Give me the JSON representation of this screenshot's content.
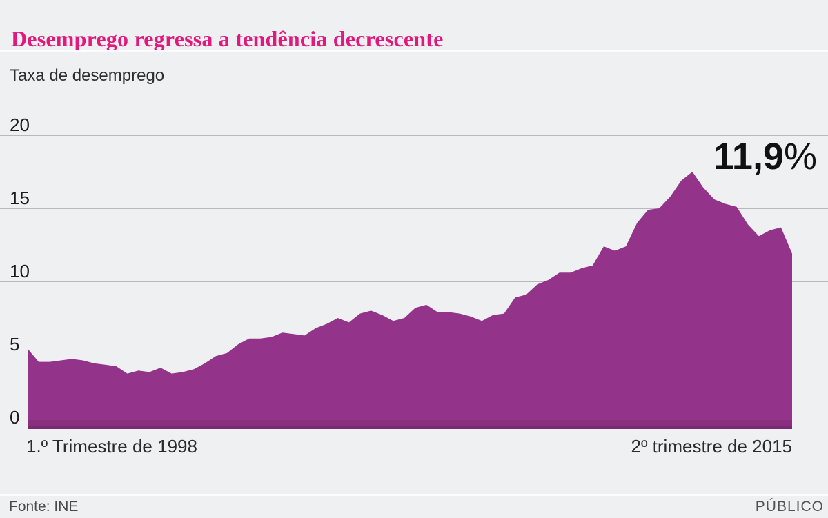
{
  "header": {
    "title": "Desemprego regressa a tendência decrescente",
    "subtitle": "Taxa de desemprego"
  },
  "annotation": {
    "value": "11,9",
    "unit": "%"
  },
  "x_axis": {
    "start_label": "1.º Trimestre de 1998",
    "end_label": "2º trimestre de 2015"
  },
  "footer": {
    "source": "Fonte: INE",
    "brand": "PÚBLICO"
  },
  "colors": {
    "background": "#eff0f1",
    "title_accent": "#e2197d",
    "area_fill": "#93338a",
    "area_base_shade": "#7c2f76",
    "gridline": "#b9b9bd",
    "annotation_text": "#111111"
  },
  "chart_data": {
    "type": "area",
    "title": "Desemprego regressa a tendência decrescente",
    "ylabel": "Taxa de desemprego",
    "unit": "percent",
    "frequency": "quarterly",
    "x_start": "1.º Trimestre de 1998",
    "x_end": "2º trimestre de 2015",
    "ylim": [
      0,
      20
    ],
    "y_ticks": [
      0,
      5,
      10,
      15,
      20
    ],
    "grid": "horizontal",
    "legend": "none",
    "last_value_label": "11,9%",
    "values": [
      5.4,
      4.5,
      4.5,
      4.6,
      4.7,
      4.6,
      4.4,
      4.3,
      4.2,
      3.7,
      3.9,
      3.8,
      4.1,
      3.7,
      3.8,
      4.0,
      4.4,
      4.9,
      5.1,
      5.7,
      6.1,
      6.1,
      6.2,
      6.5,
      6.4,
      6.3,
      6.8,
      7.1,
      7.5,
      7.2,
      7.8,
      8.0,
      7.7,
      7.3,
      7.5,
      8.2,
      8.4,
      7.9,
      7.9,
      7.8,
      7.6,
      7.3,
      7.7,
      7.8,
      8.9,
      9.1,
      9.8,
      10.1,
      10.6,
      10.6,
      10.9,
      11.1,
      12.4,
      12.1,
      12.4,
      14.0,
      14.9,
      15.0,
      15.8,
      16.9,
      17.5,
      16.4,
      15.6,
      15.3,
      15.1,
      13.9,
      13.1,
      13.5,
      13.7,
      11.9
    ]
  }
}
